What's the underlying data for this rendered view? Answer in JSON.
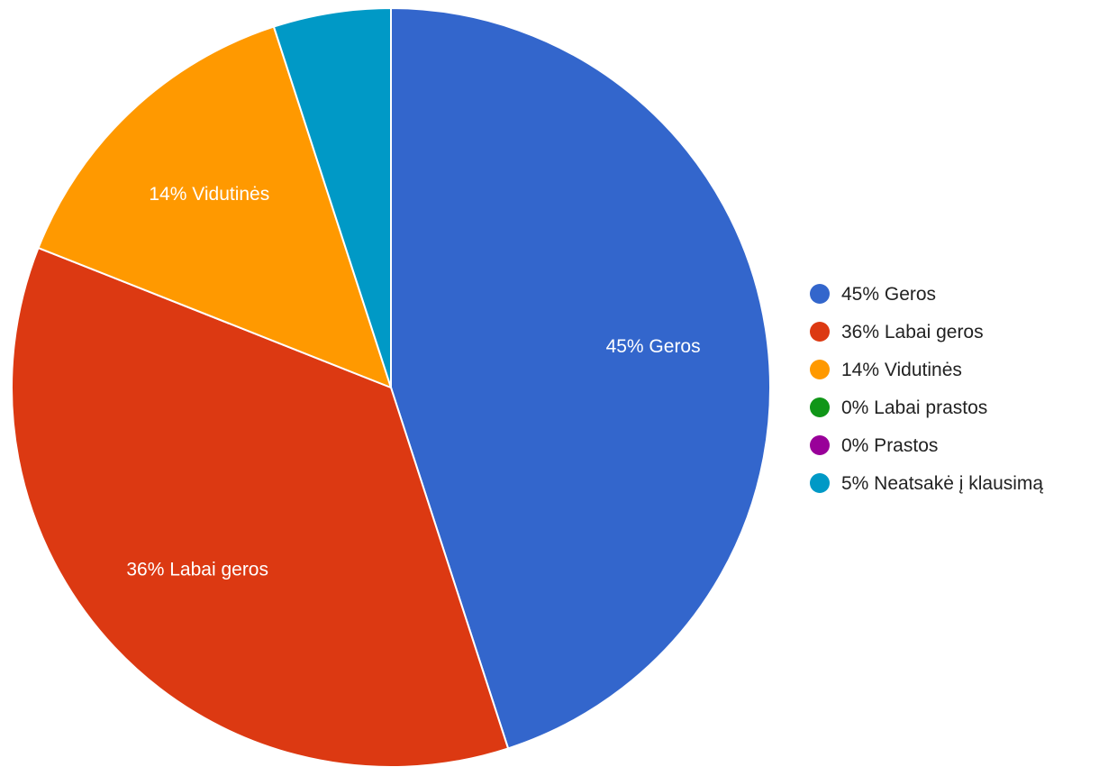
{
  "chart_data": {
    "type": "pie",
    "legend_position": "right",
    "slices": [
      {
        "label": "Geros",
        "value": 45,
        "display": "45% Geros",
        "color": "#3366cc"
      },
      {
        "label": "Labai geros",
        "value": 36,
        "display": "36% Labai geros",
        "color": "#dc3912"
      },
      {
        "label": "Vidutinės",
        "value": 14,
        "display": "14% Vidutinės",
        "color": "#ff9900"
      },
      {
        "label": "Labai prastos",
        "value": 0,
        "display": "0% Labai prastos",
        "color": "#109618"
      },
      {
        "label": "Prastos",
        "value": 0,
        "display": "0% Prastos",
        "color": "#990099"
      },
      {
        "label": "Neatsakė į klausimą",
        "value": 5,
        "display": "5% Neatsakė į klausimą",
        "color": "#0099c6"
      }
    ],
    "slice_labels": [
      "45% Geros",
      "36% Labai geros",
      "14% Vidutinės"
    ]
  }
}
